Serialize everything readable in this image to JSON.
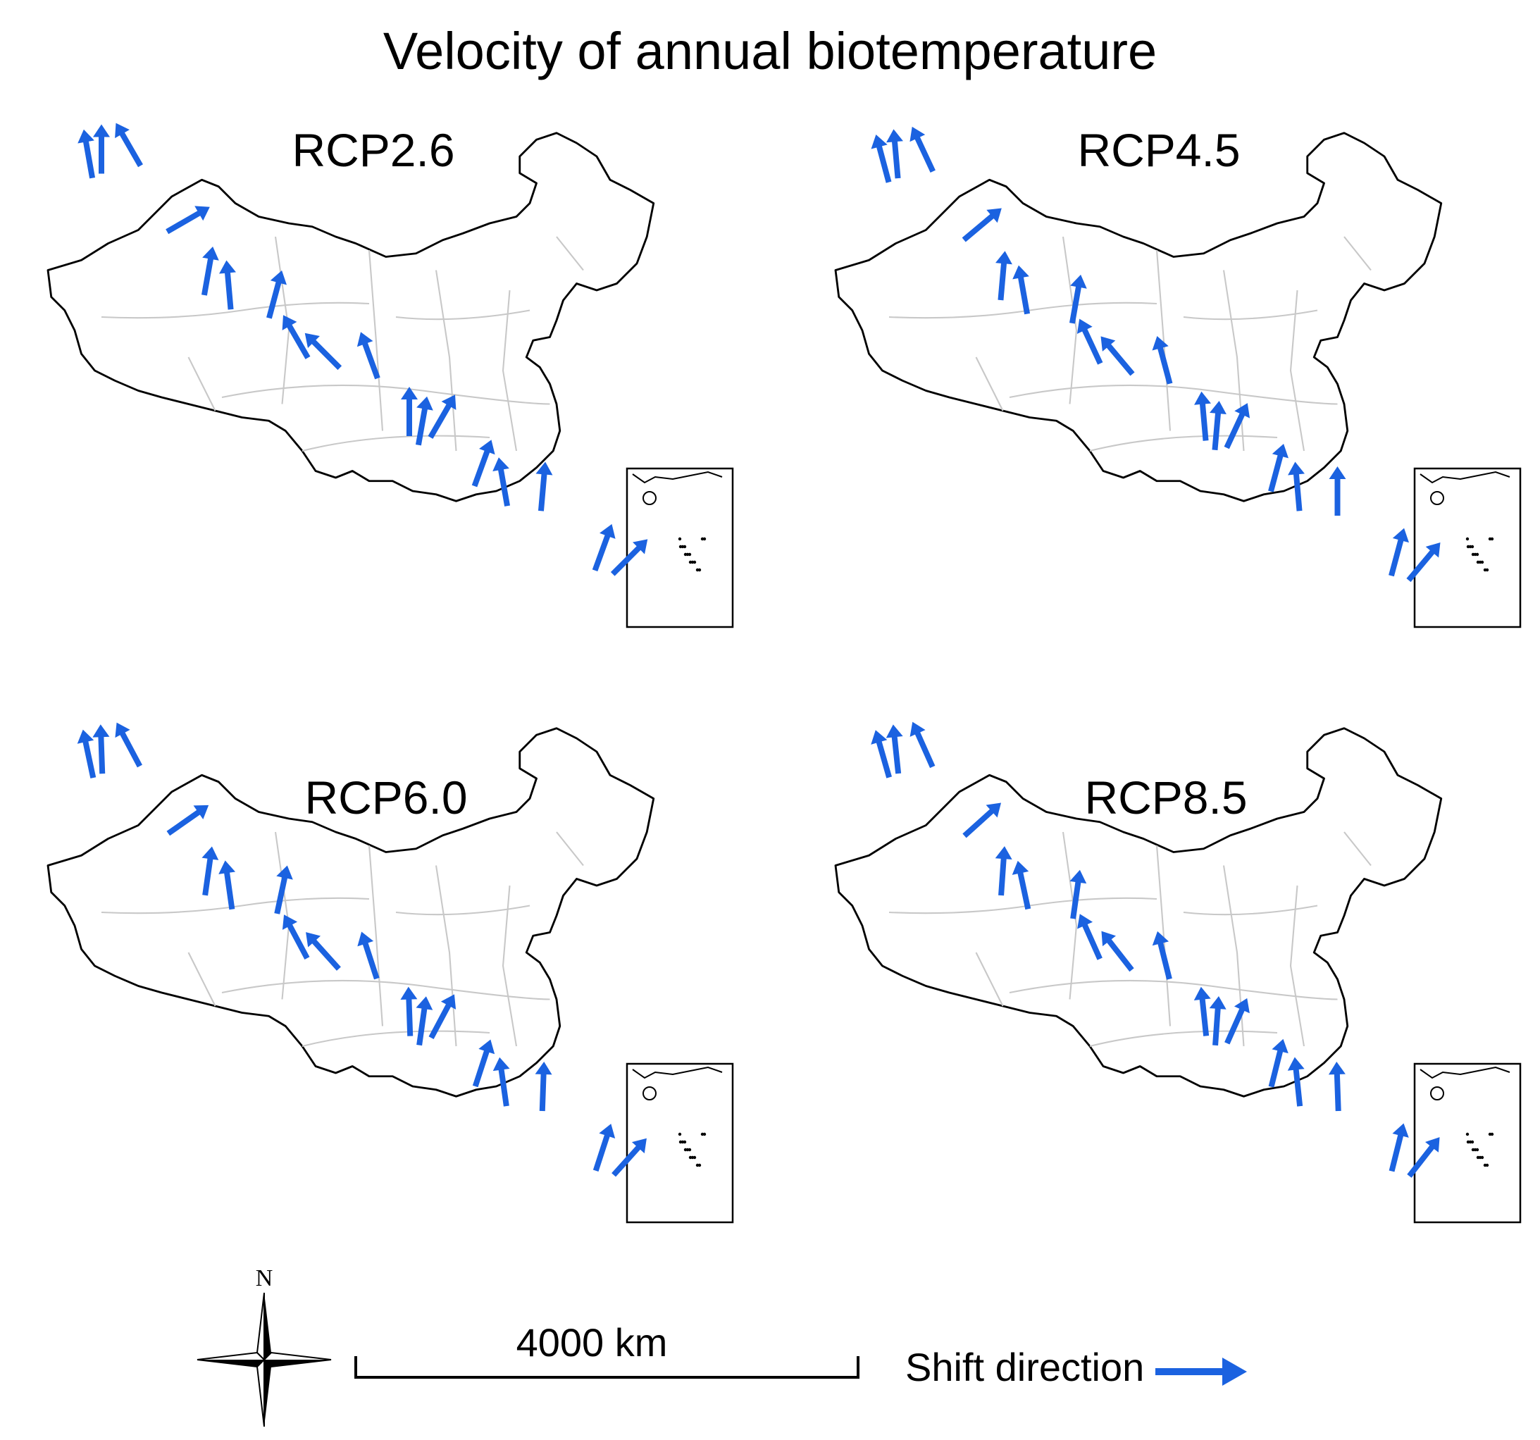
{
  "title": "Velocity of annual biotemperature",
  "colors": {
    "arrow": "#1b62e0",
    "border": "#000000",
    "province": "#c8c8c8"
  },
  "panels": [
    {
      "label": "RCP2.6",
      "arrows": [
        [
          0.12,
          0.07,
          -90
        ],
        [
          0.25,
          0.22,
          -30
        ],
        [
          0.38,
          0.38,
          -75
        ],
        [
          0.52,
          0.51,
          -110
        ],
        [
          0.63,
          0.64,
          -60
        ],
        [
          0.78,
          0.79,
          -85
        ],
        [
          0.91,
          0.94,
          -45
        ],
        [
          0.16,
          0.06,
          -120
        ],
        [
          0.31,
          0.36,
          -95
        ],
        [
          0.45,
          0.5,
          -135
        ],
        [
          0.6,
          0.65,
          -80
        ],
        [
          0.72,
          0.78,
          -100
        ],
        [
          0.87,
          0.92,
          -70
        ],
        [
          0.1,
          0.08,
          -100
        ],
        [
          0.28,
          0.33,
          -80
        ],
        [
          0.41,
          0.47,
          -120
        ],
        [
          0.58,
          0.63,
          -90
        ],
        [
          0.69,
          0.74,
          -70
        ]
      ]
    },
    {
      "label": "RCP4.5",
      "arrows": [
        [
          0.13,
          0.08,
          -95
        ],
        [
          0.26,
          0.23,
          -40
        ],
        [
          0.4,
          0.39,
          -80
        ],
        [
          0.53,
          0.52,
          -105
        ],
        [
          0.64,
          0.66,
          -65
        ],
        [
          0.79,
          0.8,
          -90
        ],
        [
          0.92,
          0.95,
          -50
        ],
        [
          0.17,
          0.07,
          -115
        ],
        [
          0.32,
          0.37,
          -100
        ],
        [
          0.46,
          0.51,
          -130
        ],
        [
          0.61,
          0.66,
          -85
        ],
        [
          0.73,
          0.79,
          -95
        ],
        [
          0.88,
          0.93,
          -75
        ],
        [
          0.11,
          0.09,
          -105
        ],
        [
          0.29,
          0.34,
          -85
        ],
        [
          0.42,
          0.48,
          -115
        ],
        [
          0.59,
          0.64,
          -95
        ],
        [
          0.7,
          0.75,
          -75
        ]
      ]
    },
    {
      "label": "RCP6.0",
      "arrows": [
        [
          0.12,
          0.08,
          -92
        ],
        [
          0.25,
          0.23,
          -35
        ],
        [
          0.39,
          0.38,
          -78
        ],
        [
          0.52,
          0.52,
          -108
        ],
        [
          0.63,
          0.65,
          -62
        ],
        [
          0.78,
          0.8,
          -88
        ],
        [
          0.91,
          0.95,
          -48
        ],
        [
          0.16,
          0.07,
          -118
        ],
        [
          0.31,
          0.37,
          -98
        ],
        [
          0.45,
          0.51,
          -132
        ],
        [
          0.6,
          0.66,
          -82
        ],
        [
          0.72,
          0.79,
          -98
        ],
        [
          0.87,
          0.93,
          -72
        ],
        [
          0.1,
          0.09,
          -102
        ],
        [
          0.28,
          0.34,
          -82
        ],
        [
          0.41,
          0.48,
          -118
        ],
        [
          0.58,
          0.64,
          -92
        ],
        [
          0.69,
          0.75,
          -72
        ]
      ]
    },
    {
      "label": "RCP8.5",
      "arrows": [
        [
          0.13,
          0.08,
          -96
        ],
        [
          0.26,
          0.23,
          -42
        ],
        [
          0.4,
          0.39,
          -82
        ],
        [
          0.53,
          0.52,
          -104
        ],
        [
          0.64,
          0.66,
          -66
        ],
        [
          0.79,
          0.8,
          -92
        ],
        [
          0.92,
          0.95,
          -52
        ],
        [
          0.17,
          0.07,
          -114
        ],
        [
          0.32,
          0.37,
          -102
        ],
        [
          0.46,
          0.51,
          -128
        ],
        [
          0.61,
          0.66,
          -86
        ],
        [
          0.73,
          0.79,
          -96
        ],
        [
          0.88,
          0.93,
          -76
        ],
        [
          0.11,
          0.09,
          -106
        ],
        [
          0.29,
          0.34,
          -86
        ],
        [
          0.42,
          0.48,
          -114
        ],
        [
          0.59,
          0.64,
          -96
        ],
        [
          0.7,
          0.75,
          -76
        ]
      ]
    }
  ],
  "scale_bar": {
    "label": "4000 km"
  },
  "north_arrow": {
    "label": "N"
  },
  "legend": {
    "label": "Shift direction",
    "icon": "arrow-right-icon"
  }
}
